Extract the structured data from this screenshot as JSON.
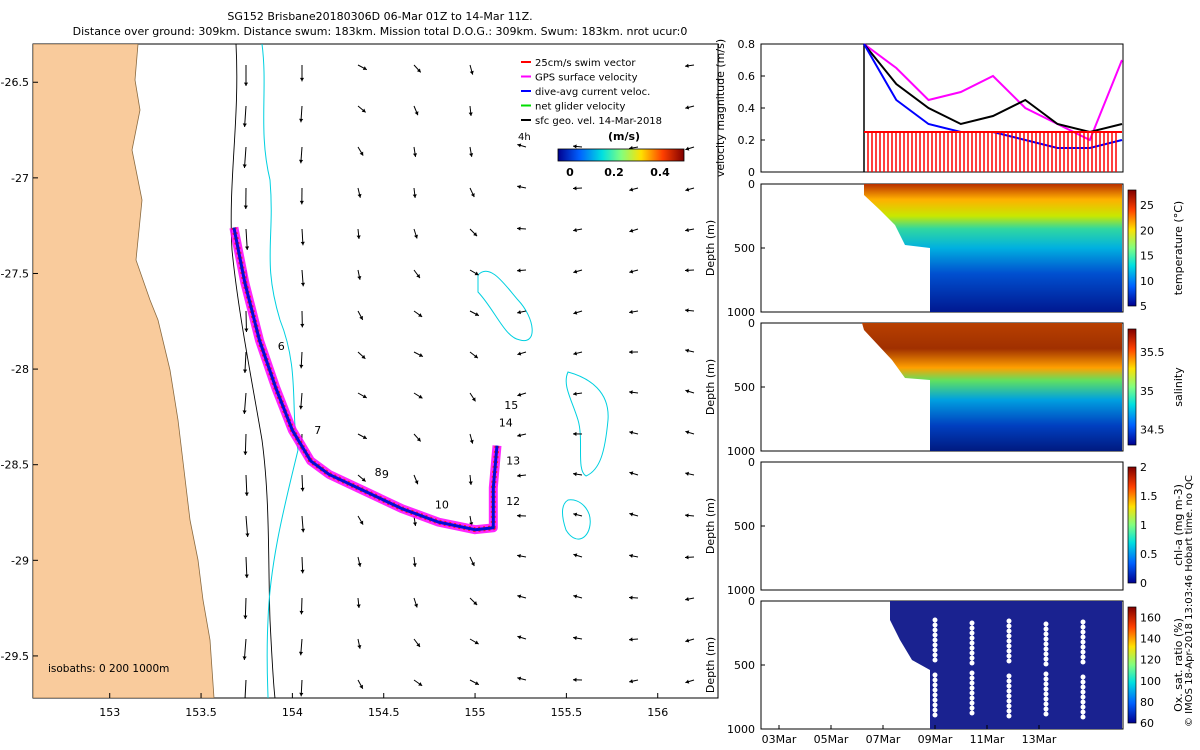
{
  "header": {
    "line1": "SG152 Brisbane20180306D 06-Mar 01Z to 14-Mar 11Z.",
    "line2": "Distance over ground: 309km. Distance swum: 183km. Mission total D.O.G.: 309km. Swum: 183km. nrot ucur:0"
  },
  "map": {
    "lon_ticks": [
      "153",
      "153.5",
      "154",
      "154.5",
      "155",
      "155.5",
      "156"
    ],
    "lat_ticks": [
      "-26.5",
      "-27",
      "-27.5",
      "-28",
      "-28.5",
      "-29",
      "-29.5"
    ],
    "lon_range": [
      152.58,
      156.33
    ],
    "lat_range": [
      -29.72,
      -26.3
    ],
    "isobaths_label": "isobaths: 0   200  1000m",
    "legend": [
      {
        "label": "25cm/s swim vector",
        "color": "#ff0000"
      },
      {
        "label": "GPS surface velocity",
        "color": "#ff00ff"
      },
      {
        "label": "dive-avg current veloc.",
        "color": "#0000ff"
      },
      {
        "label": "net glider velocity",
        "color": "#00dd00"
      },
      {
        "label": "sfc geo. vel. 14-Mar-2018",
        "color": "#000000"
      }
    ],
    "legend_extra": "4h",
    "colorbar": {
      "unit": "(m/s)",
      "ticks": [
        "0",
        "0.2",
        "0.4"
      ],
      "colors": [
        "#00008f",
        "#0060ff",
        "#00e0e0",
        "#80ff80",
        "#ffe000",
        "#ff4000",
        "#800000"
      ]
    },
    "track": {
      "points": [
        [
          153.68,
          -27.26
        ],
        [
          153.74,
          -27.55
        ],
        [
          153.82,
          -27.85
        ],
        [
          153.91,
          -28.1
        ],
        [
          154.0,
          -28.32
        ],
        [
          154.1,
          -28.48
        ],
        [
          154.2,
          -28.55
        ],
        [
          154.4,
          -28.64
        ],
        [
          154.6,
          -28.73
        ],
        [
          154.8,
          -28.8
        ],
        [
          155.0,
          -28.84
        ],
        [
          155.1,
          -28.83
        ],
        [
          155.1,
          -28.62
        ],
        [
          155.12,
          -28.4
        ]
      ],
      "day_labels": [
        {
          "text": "6",
          "lon": 153.92,
          "lat": -27.9
        },
        {
          "text": "7",
          "lon": 154.12,
          "lat": -28.34
        },
        {
          "text": "8",
          "lon": 154.45,
          "lat": -28.56
        },
        {
          "text": "9",
          "lon": 154.49,
          "lat": -28.57
        },
        {
          "text": "10",
          "lon": 154.78,
          "lat": -28.73
        },
        {
          "text": "12",
          "lon": 155.17,
          "lat": -28.71
        },
        {
          "text": "13",
          "lon": 155.17,
          "lat": -28.5
        },
        {
          "text": "14",
          "lon": 155.13,
          "lat": -28.3
        },
        {
          "text": "15",
          "lon": 155.16,
          "lat": -28.21
        }
      ]
    }
  },
  "panels": {
    "velocity": {
      "ylabel": "velocity magnitude (m/s)",
      "yticks": [
        "0",
        "0.2",
        "0.4",
        "0.6",
        "0.8"
      ]
    },
    "temperature": {
      "ylabel": "Depth (m)",
      "cblabel": "temperature (°C)",
      "yticks": [
        "0",
        "500",
        "1000"
      ],
      "cbticks": [
        "5",
        "10",
        "15",
        "20",
        "25"
      ]
    },
    "salinity": {
      "ylabel": "Depth (m)",
      "cblabel": "salinity",
      "yticks": [
        "0",
        "500",
        "1000"
      ],
      "cbticks": [
        "34.5",
        "35",
        "35.5"
      ]
    },
    "chla": {
      "ylabel": "Depth (m)",
      "cblabel": "chl-a (mg m-3)",
      "yticks": [
        "0",
        "500",
        "1000"
      ],
      "cbticks": [
        "0",
        "0.5",
        "1",
        "1.5",
        "2"
      ]
    },
    "oxygen": {
      "ylabel": "Depth (m)",
      "cblabel": "Ox. sat. ratio (%)",
      "yticks": [
        "0",
        "500",
        "1000"
      ],
      "cbticks": [
        "60",
        "80",
        "100",
        "120",
        "140",
        "160"
      ]
    },
    "date_ticks": [
      "03Mar",
      "05Mar",
      "07Mar",
      "09Mar",
      "11Mar",
      "13Mar"
    ]
  },
  "credit": "© IMOS 18-Apr-2018 13:03:46 Hobart time. no QC",
  "chart_data": [
    {
      "type": "scatter",
      "title": "SG152 Brisbane20180306D 06-Mar 01Z to 14-Mar 11Z.",
      "xlabel": "",
      "ylabel": "",
      "xlim": [
        152.58,
        156.33
      ],
      "ylim": [
        -29.72,
        -26.3
      ],
      "series": [
        {
          "name": "dive-avg current veloc.",
          "x": [
            153.68,
            153.74,
            153.82,
            153.91,
            154.0,
            154.1,
            154.2,
            154.4,
            154.6,
            154.8,
            155.0,
            155.1,
            155.1,
            155.12
          ],
          "y": [
            -27.26,
            -27.55,
            -27.85,
            -28.1,
            -28.32,
            -28.48,
            -28.55,
            -28.64,
            -28.73,
            -28.8,
            -28.84,
            -28.83,
            -28.62,
            -28.4
          ]
        }
      ]
    },
    {
      "type": "line",
      "ylabel": "velocity magnitude (m/s)",
      "ylim": [
        0,
        0.8
      ],
      "x": [
        "06Mar",
        "07Mar",
        "08Mar",
        "09Mar",
        "10Mar",
        "11Mar",
        "12Mar",
        "13Mar",
        "14Mar"
      ],
      "series": [
        {
          "name": "GPS surface velocity",
          "values": [
            0.8,
            0.65,
            0.45,
            0.5,
            0.6,
            0.4,
            0.3,
            0.2,
            0.7
          ]
        },
        {
          "name": "net glider velocity",
          "values": [
            0.8,
            0.55,
            0.4,
            0.3,
            0.35,
            0.45,
            0.3,
            0.25,
            0.3
          ]
        },
        {
          "name": "dive-avg current veloc.",
          "values": [
            0.8,
            0.45,
            0.3,
            0.25,
            0.25,
            0.2,
            0.15,
            0.15,
            0.2
          ]
        },
        {
          "name": "25cm/s swim vector",
          "values": [
            0.25,
            0.25,
            0.25,
            0.25,
            0.25,
            0.25,
            0.25,
            0.25,
            0.25
          ]
        }
      ]
    },
    {
      "type": "heatmap",
      "ylabel": "Depth (m)",
      "colorbar_label": "temperature (°C)",
      "ylim": [
        1000,
        0
      ],
      "clim": [
        5,
        28
      ]
    },
    {
      "type": "heatmap",
      "ylabel": "Depth (m)",
      "colorbar_label": "salinity",
      "ylim": [
        1000,
        0
      ],
      "clim": [
        34.3,
        35.8
      ]
    },
    {
      "type": "heatmap",
      "ylabel": "Depth (m)",
      "colorbar_label": "chl-a (mg m-3)",
      "ylim": [
        1000,
        0
      ],
      "clim": [
        0,
        2
      ]
    },
    {
      "type": "heatmap",
      "ylabel": "Depth (m)",
      "colorbar_label": "Ox. sat. ratio (%)",
      "ylim": [
        1000,
        0
      ],
      "clim": [
        60,
        170
      ]
    }
  ]
}
